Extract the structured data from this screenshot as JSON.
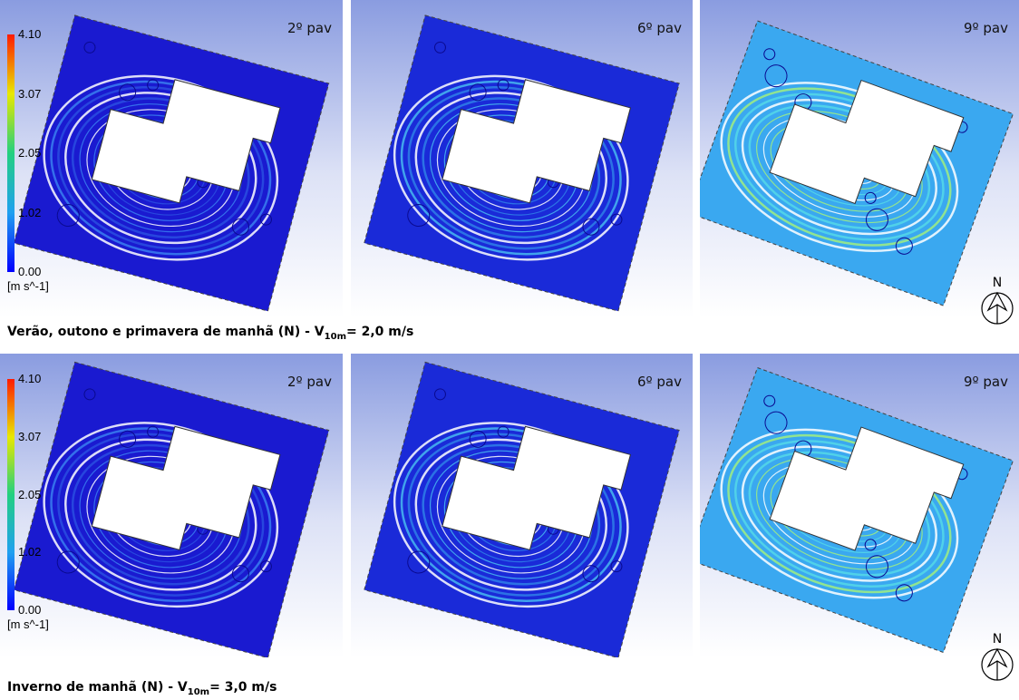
{
  "rows": [
    {
      "caption": {
        "prefix": "Verão, outono e primavera de manhã (N) - V",
        "subscript": "10m",
        "suffix": "= 2,0 m/s"
      },
      "legend": {
        "ticks": [
          "4.10",
          "3.07",
          "2.05",
          "1.02",
          "0.00"
        ],
        "unit": "[m s^-1]"
      },
      "panels": [
        {
          "label": "2º pav"
        },
        {
          "label": "6º pav"
        },
        {
          "label": "9º pav"
        }
      ],
      "north": "N"
    },
    {
      "caption": {
        "prefix": "Inverno de manhã (N) - V",
        "subscript": "10m",
        "suffix": "= 3,0 m/s"
      },
      "legend": {
        "ticks": [
          "4.10",
          "3.07",
          "2.05",
          "1.02",
          "0.00"
        ],
        "unit": "[m s^-1]"
      },
      "panels": [
        {
          "label": "2º pav"
        },
        {
          "label": "6º pav"
        },
        {
          "label": "9º pav"
        }
      ],
      "north": "N"
    }
  ]
}
